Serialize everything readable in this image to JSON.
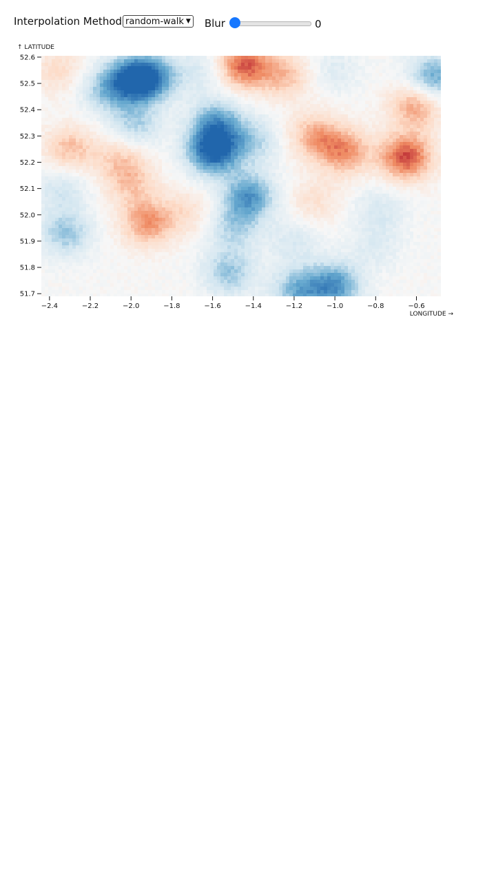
{
  "controls": {
    "method_label": "Interpolation Method",
    "method_value": "random-walk",
    "blur_label": "Blur",
    "blur_value": "0"
  },
  "chart_data": {
    "type": "heatmap",
    "xlabel": "LONGITUDE →",
    "ylabel": "↑ LATITUDE",
    "xlim": [
      -2.44,
      -0.48
    ],
    "ylim": [
      51.69,
      52.605
    ],
    "x_ticks": [
      "−2.4",
      "−2.2",
      "−2.0",
      "−1.8",
      "−1.6",
      "−1.4",
      "−1.2",
      "−1.0",
      "−0.8",
      "−0.6"
    ],
    "y_ticks": [
      "52.6",
      "52.5",
      "52.4",
      "52.3",
      "52.2",
      "52.1",
      "52.0",
      "51.9",
      "51.8",
      "51.7"
    ],
    "colormap": [
      "#b2182b",
      "#ef8a62",
      "#fddbc7",
      "#f7f7f7",
      "#d1e5f0",
      "#67a9cf",
      "#2166ac"
    ],
    "fields": [
      {
        "lon": -2.3,
        "lat": 52.25,
        "value": 0.45
      },
      {
        "lon": -2.05,
        "lat": 52.22,
        "value": 0.35
      },
      {
        "lon": -1.92,
        "lat": 51.97,
        "value": 0.6
      },
      {
        "lon": -2.0,
        "lat": 52.12,
        "value": 0.35
      },
      {
        "lon": -2.35,
        "lat": 52.55,
        "value": 0.3
      },
      {
        "lon": -1.45,
        "lat": 52.57,
        "value": 0.8
      },
      {
        "lon": -1.25,
        "lat": 52.53,
        "value": 0.45
      },
      {
        "lon": -0.95,
        "lat": 52.24,
        "value": 0.6
      },
      {
        "lon": -0.65,
        "lat": 52.22,
        "value": 0.85
      },
      {
        "lon": -0.6,
        "lat": 52.42,
        "value": 0.6
      },
      {
        "lon": -1.1,
        "lat": 52.3,
        "value": 0.5
      },
      {
        "lon": -1.1,
        "lat": 52.05,
        "value": 0.25
      },
      {
        "lon": -1.72,
        "lat": 52.01,
        "value": 0.25
      },
      {
        "lon": -1.97,
        "lat": 52.52,
        "value": -1.0
      },
      {
        "lon": -2.12,
        "lat": 52.48,
        "value": -0.5
      },
      {
        "lon": -1.88,
        "lat": 52.52,
        "value": -0.45
      },
      {
        "lon": -1.6,
        "lat": 52.24,
        "value": -1.0
      },
      {
        "lon": -1.58,
        "lat": 52.35,
        "value": -0.65
      },
      {
        "lon": -1.4,
        "lat": 52.28,
        "value": -0.4
      },
      {
        "lon": -1.42,
        "lat": 52.07,
        "value": -0.75
      },
      {
        "lon": -1.52,
        "lat": 51.78,
        "value": -0.5
      },
      {
        "lon": -1.5,
        "lat": 51.95,
        "value": -0.4
      },
      {
        "lon": -1.0,
        "lat": 51.73,
        "value": -0.75
      },
      {
        "lon": -1.18,
        "lat": 51.71,
        "value": -0.6
      },
      {
        "lon": -2.32,
        "lat": 51.93,
        "value": -0.5
      },
      {
        "lon": -2.34,
        "lat": 52.1,
        "value": -0.3
      },
      {
        "lon": -1.98,
        "lat": 52.34,
        "value": -0.45
      },
      {
        "lon": -1.65,
        "lat": 52.55,
        "value": -0.25
      },
      {
        "lon": -0.52,
        "lat": 52.52,
        "value": -0.7
      },
      {
        "lon": -1.0,
        "lat": 52.55,
        "value": -0.2
      },
      {
        "lon": -0.8,
        "lat": 51.88,
        "value": -0.2
      },
      {
        "lon": -1.2,
        "lat": 51.9,
        "value": -0.25
      },
      {
        "lon": -0.78,
        "lat": 52.02,
        "value": -0.25
      }
    ]
  }
}
